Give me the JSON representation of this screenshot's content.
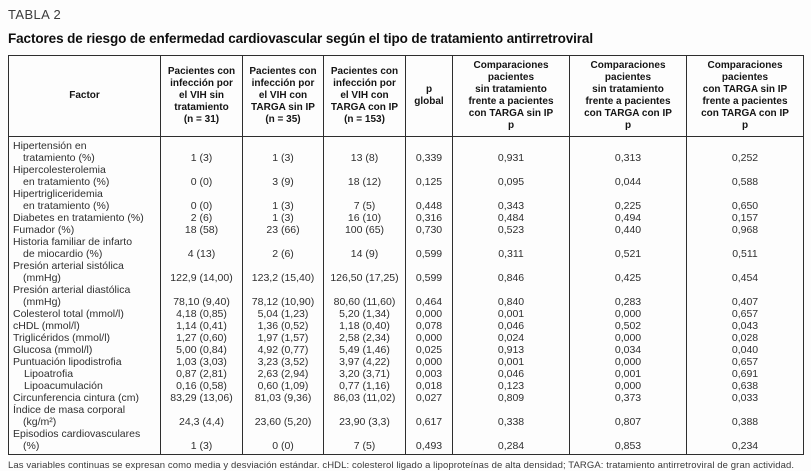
{
  "page": {
    "label": "TABLA 2",
    "title": "Factores de riesgo de enfermedad cardiovascular según el tipo de tratamiento antirretroviral",
    "footnote": "Las variables continuas se expresan como media y desviación estándar. cHDL: colesterol ligado a lipoproteínas de alta densidad; TARGA: tratamiento antirretroviral de gran actividad."
  },
  "table": {
    "columns": [
      {
        "id": "factor",
        "lines": [
          "Factor"
        ]
      },
      {
        "id": "vih-sin-tratamiento",
        "lines": [
          "Pacientes con",
          "infección por",
          "el VIH sin",
          "tratamiento",
          "(n = 31)"
        ]
      },
      {
        "id": "vih-targa-sin-ip",
        "lines": [
          "Pacientes con",
          "infección por",
          "el VIH con",
          "TARGA sin IP",
          "(n = 35)"
        ]
      },
      {
        "id": "vih-targa-con-ip",
        "lines": [
          "Pacientes con",
          "infección por",
          "el VIH con",
          "TARGA con IP",
          "(n = 153)"
        ]
      },
      {
        "id": "p-global",
        "lines": [
          "p",
          "global"
        ]
      },
      {
        "id": "comp-sintrat-targasinip",
        "lines": [
          "Comparaciones pacientes",
          "sin tratamiento",
          "frente a pacientes",
          "con TARGA sin IP",
          "p"
        ]
      },
      {
        "id": "comp-sintrat-targaconip",
        "lines": [
          "Comparaciones pacientes",
          "sin tratamiento",
          "frente a pacientes",
          "con TARGA con IP",
          "p"
        ]
      },
      {
        "id": "comp-targasinip-targaconip",
        "lines": [
          "Comparaciones pacientes",
          "con TARGA sin IP",
          "frente a pacientes",
          "con TARGA con IP",
          "p"
        ]
      }
    ],
    "rows": [
      {
        "factor_lines": [
          "Hipertensión en",
          "tratamiento (%)"
        ],
        "indent": false,
        "values": [
          "1 (3)",
          "1 (3)",
          "13 (8)",
          "0,339",
          "0,931",
          "0,313",
          "0,252"
        ]
      },
      {
        "factor_lines": [
          "Hipercolesterolemia",
          "en tratamiento (%)"
        ],
        "indent": false,
        "values": [
          "0 (0)",
          "3 (9)",
          "18 (12)",
          "0,125",
          "0,095",
          "0,044",
          "0,588"
        ]
      },
      {
        "factor_lines": [
          "Hipertrigliceridemia",
          "en tratamiento (%)"
        ],
        "indent": false,
        "values": [
          "0 (0)",
          "1 (3)",
          "7 (5)",
          "0,448",
          "0,343",
          "0,225",
          "0,650"
        ]
      },
      {
        "factor_lines": [
          "Diabetes en tratamiento (%)"
        ],
        "indent": false,
        "values": [
          "2 (6)",
          "1 (3)",
          "16 (10)",
          "0,316",
          "0,484",
          "0,494",
          "0,157"
        ]
      },
      {
        "factor_lines": [
          "Fumador (%)"
        ],
        "indent": false,
        "values": [
          "18 (58)",
          "23 (66)",
          "100 (65)",
          "0,730",
          "0,523",
          "0,440",
          "0,968"
        ]
      },
      {
        "factor_lines": [
          "Historia familiar de infarto",
          "de miocardio (%)"
        ],
        "indent": false,
        "values": [
          "4 (13)",
          "2 (6)",
          "14 (9)",
          "0,599",
          "0,311",
          "0,521",
          "0,511"
        ]
      },
      {
        "factor_lines": [
          "Presión arterial sistólica",
          "(mmHg)"
        ],
        "indent": false,
        "values": [
          "122,9 (14,00)",
          "123,2 (15,40)",
          "126,50 (17,25)",
          "0,599",
          "0,846",
          "0,425",
          "0,454"
        ]
      },
      {
        "factor_lines": [
          "Presión arterial diastólica",
          "(mmHg)"
        ],
        "indent": false,
        "values": [
          "78,10 (9,40)",
          "78,12 (10,90)",
          "80,60 (11,60)",
          "0,464",
          "0,840",
          "0,283",
          "0,407"
        ]
      },
      {
        "factor_lines": [
          "Colesterol total (mmol/l)"
        ],
        "indent": false,
        "values": [
          "4,18 (0,85)",
          "5,04 (1,23)",
          "5,20 (1,34)",
          "0,000",
          "0,001",
          "0,000",
          "0,657"
        ]
      },
      {
        "factor_lines": [
          "cHDL (mmol/l)"
        ],
        "indent": false,
        "values": [
          "1,14 (0,41)",
          "1,36 (0,52)",
          "1,18 (0,40)",
          "0,078",
          "0,046",
          "0,502",
          "0,043"
        ]
      },
      {
        "factor_lines": [
          "Triglicéridos (mmol/l)"
        ],
        "indent": false,
        "values": [
          "1,27 (0,60)",
          "1,97 (1,57)",
          "2,58 (2,34)",
          "0,000",
          "0,024",
          "0,000",
          "0,028"
        ]
      },
      {
        "factor_lines": [
          "Glucosa (mmol/l)"
        ],
        "indent": false,
        "values": [
          "5,00 (0,84)",
          "4,92 (0,77)",
          "5,49 (1,46)",
          "0,025",
          "0,913",
          "0,034",
          "0,040"
        ]
      },
      {
        "factor_lines": [
          "Puntuación lipodistrofia"
        ],
        "indent": false,
        "values": [
          "1,03 (3,03)",
          "3,23 (3,52)",
          "3,97 (4,22)",
          "0,000",
          "0,001",
          "0,000",
          "0,657"
        ]
      },
      {
        "factor_lines": [
          "Lipoatrofia"
        ],
        "indent": true,
        "values": [
          "0,87 (2,81)",
          "2,63 (2,94)",
          "3,20 (3,71)",
          "0,003",
          "0,046",
          "0,001",
          "0,691"
        ]
      },
      {
        "factor_lines": [
          "Lipoacumulación"
        ],
        "indent": true,
        "values": [
          "0,16 (0,58)",
          "0,60 (1,09)",
          "0,77 (1,16)",
          "0,018",
          "0,123",
          "0,000",
          "0,638"
        ]
      },
      {
        "factor_lines": [
          "Circunferencia cintura (cm)"
        ],
        "indent": false,
        "values": [
          "83,29 (13,06)",
          "81,03 (9,36)",
          "86,03 (11,02)",
          "0,027",
          "0,809",
          "0,373",
          "0,033"
        ]
      },
      {
        "factor_lines": [
          "Índice de masa corporal",
          "(kg/m²)"
        ],
        "indent": false,
        "values": [
          "24,3 (4,4)",
          "23,60 (5,20)",
          "23,90 (3,3)",
          "0,617",
          "0,338",
          "0,807",
          "0,388"
        ]
      },
      {
        "factor_lines": [
          "Episodios cardiovasculares",
          "(%)"
        ],
        "indent": false,
        "values": [
          "1 (3)",
          "0 (0)",
          "7 (5)",
          "0,493",
          "0,284",
          "0,853",
          "0,234"
        ]
      }
    ]
  }
}
